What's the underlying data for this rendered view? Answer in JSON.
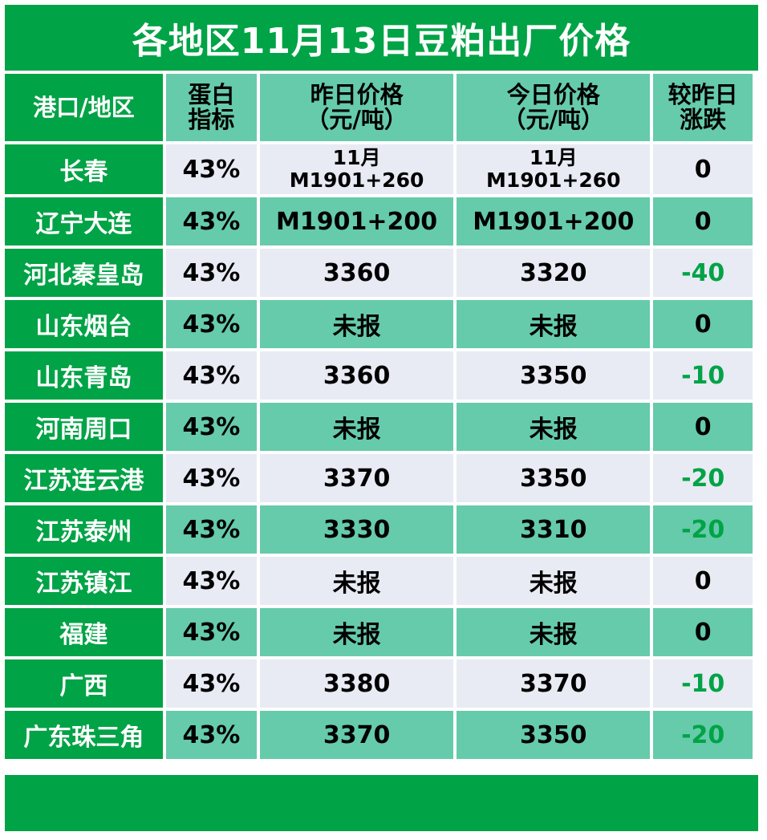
{
  "title": "各地区11月13日豆粕出厂价格",
  "headers": {
    "region": "港口/地区",
    "protein_line1": "蛋白",
    "protein_line2": "指标",
    "yesterday_line1": "昨日价格",
    "yesterday_line2": "（元/吨）",
    "today_line1": "今日价格",
    "today_line2": "（元/吨）",
    "change_line1": "较昨日",
    "change_line2": "涨跌"
  },
  "rows": [
    {
      "region": "长春",
      "protein": "43%",
      "yesterday_line1": "11月",
      "yesterday_line2": "M1901+260",
      "today_line1": "11月",
      "today_line2": "M1901+260",
      "change": "0"
    },
    {
      "region": "辽宁大连",
      "protein": "43%",
      "yesterday_line1": "M1901+200",
      "yesterday_line2": "",
      "today_line1": "M1901+200",
      "today_line2": "",
      "change": "0"
    },
    {
      "region": "河北秦皇岛",
      "protein": "43%",
      "yesterday_line1": "3360",
      "yesterday_line2": "",
      "today_line1": "3320",
      "today_line2": "",
      "change": "-40"
    },
    {
      "region": "山东烟台",
      "protein": "43%",
      "yesterday_line1": "未报",
      "yesterday_line2": "",
      "today_line1": "未报",
      "today_line2": "",
      "change": "0"
    },
    {
      "region": "山东青岛",
      "protein": "43%",
      "yesterday_line1": "3360",
      "yesterday_line2": "",
      "today_line1": "3350",
      "today_line2": "",
      "change": "-10"
    },
    {
      "region": "河南周口",
      "protein": "43%",
      "yesterday_line1": "未报",
      "yesterday_line2": "",
      "today_line1": "未报",
      "today_line2": "",
      "change": "0"
    },
    {
      "region": "江苏连云港",
      "protein": "43%",
      "yesterday_line1": "3370",
      "yesterday_line2": "",
      "today_line1": "3350",
      "today_line2": "",
      "change": "-20"
    },
    {
      "region": "江苏泰州",
      "protein": "43%",
      "yesterday_line1": "3330",
      "yesterday_line2": "",
      "today_line1": "3310",
      "today_line2": "",
      "change": "-20"
    },
    {
      "region": "江苏镇江",
      "protein": "43%",
      "yesterday_line1": "未报",
      "yesterday_line2": "",
      "today_line1": "未报",
      "today_line2": "",
      "change": "0"
    },
    {
      "region": "福建",
      "protein": "43%",
      "yesterday_line1": "未报",
      "yesterday_line2": "",
      "today_line1": "未报",
      "today_line2": "",
      "change": "0"
    },
    {
      "region": "广西",
      "protein": "43%",
      "yesterday_line1": "3380",
      "yesterday_line2": "",
      "today_line1": "3370",
      "today_line2": "",
      "change": "-10"
    },
    {
      "region": "广东珠三角",
      "protein": "43%",
      "yesterday_line1": "3370",
      "yesterday_line2": "",
      "today_line1": "3350",
      "today_line2": "",
      "change": "-20"
    }
  ],
  "colors": {
    "brand_green": "#00a346",
    "teal_row": "#66cbaa",
    "light_row": "#e8eaf4",
    "negative_change": "#00a346"
  }
}
